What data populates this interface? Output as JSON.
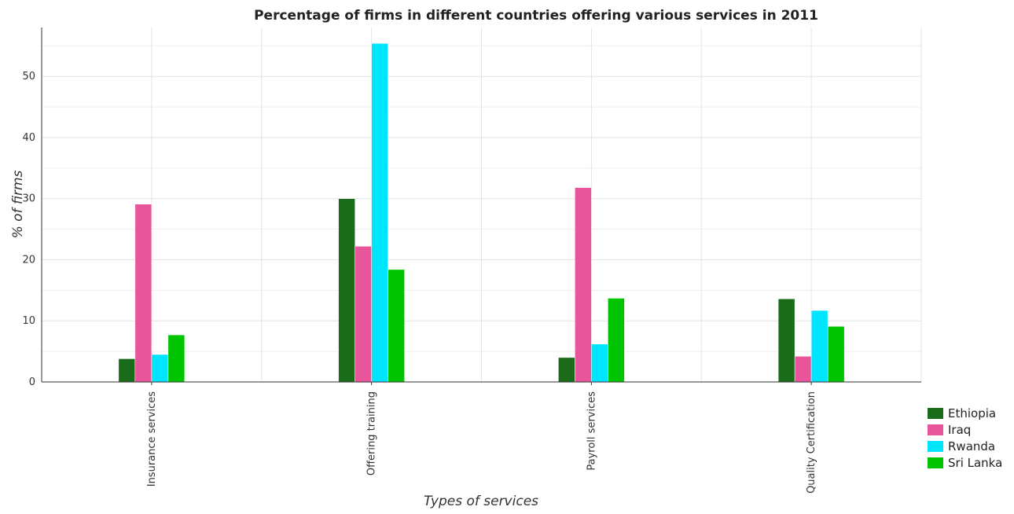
{
  "chart_data": {
    "type": "bar",
    "title": "Percentage of firms in different countries offering various services in 2011",
    "xlabel": "Types of services",
    "ylabel": "% of firms",
    "categories": [
      "Insurance services",
      "Offering training",
      "Payroll services",
      "Quality Certification"
    ],
    "ylim": [
      0,
      58
    ],
    "yticks": [
      0,
      10,
      20,
      30,
      40,
      50
    ],
    "grid": true,
    "legend_position": "bottom-right",
    "series": [
      {
        "name": "Ethiopia",
        "color": "#1a6b1a",
        "values": [
          3.8,
          30.0,
          4.0,
          13.6
        ]
      },
      {
        "name": "Iraq",
        "color": "#e8559a",
        "values": [
          29.1,
          22.2,
          31.8,
          4.2
        ]
      },
      {
        "name": "Rwanda",
        "color": "#00e5ff",
        "values": [
          4.5,
          55.4,
          6.2,
          11.7
        ]
      },
      {
        "name": "Sri Lanka",
        "color": "#00c400",
        "values": [
          7.7,
          18.4,
          13.7,
          9.1
        ]
      }
    ]
  }
}
